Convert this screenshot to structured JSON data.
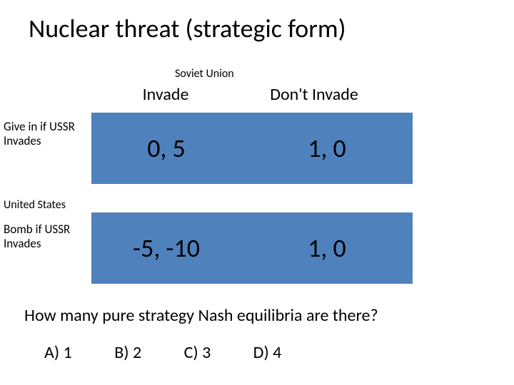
{
  "title": "Nuclear threat (strategic form)",
  "col_player": "Soviet Union",
  "row_player": "United States",
  "columns": [
    "Invade",
    "Don't Invade"
  ],
  "rows": [
    "Give in if USSR Invades",
    "Bomb if USSR Invades"
  ],
  "matrix": {
    "r1c1": "0, 5",
    "r1c2": "1, 0",
    "r2c1": "-5, -10",
    "r2c2": "1, 0"
  },
  "cell_color": "#4f81bd",
  "question": "How many pure strategy Nash equilibria are there?",
  "choices": {
    "a": "A) 1",
    "b": "B) 2",
    "c": "C) 3",
    "d": "D) 4"
  },
  "fontsize": {
    "title": 36,
    "head": 24,
    "rowlabel": 17,
    "player": 16,
    "cell": 36,
    "question": 24
  }
}
